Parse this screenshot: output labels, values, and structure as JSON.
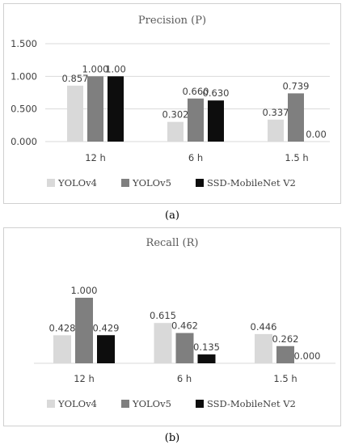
{
  "colors": [
    "#d9d9d9",
    "#7f7f7f",
    "#0d0d0d"
  ],
  "chart_data": [
    {
      "type": "bar",
      "title": "Precision (P)",
      "caption": "(a)",
      "categories": [
        "12 h",
        "6 h",
        "1.5 h"
      ],
      "series": [
        {
          "name": "YOLOv4",
          "values": [
            0.857,
            0.302,
            0.337
          ],
          "labels": [
            "0.857",
            "0.302",
            "0.337"
          ]
        },
        {
          "name": "YOLOv5",
          "values": [
            1.0,
            0.66,
            0.739
          ],
          "labels": [
            "1.000",
            "0.660",
            "0.739"
          ]
        },
        {
          "name": "SSD-MobileNet V2",
          "values": [
            1.0,
            0.63,
            0.0
          ],
          "labels": [
            "1.00",
            "0.630",
            "0.00"
          ]
        }
      ],
      "ylim": [
        0,
        1.5
      ],
      "yticks": [
        "0.000",
        "0.500",
        "1.000",
        "1.500"
      ],
      "grid": true,
      "legend": "bottom"
    },
    {
      "type": "bar",
      "title": "Recall (R)",
      "caption": "(b)",
      "categories": [
        "12 h",
        "6 h",
        "1.5 h"
      ],
      "series": [
        {
          "name": "YOLOv4",
          "values": [
            0.428,
            0.615,
            0.446
          ],
          "labels": [
            "0.428",
            "0.615",
            "0.446"
          ]
        },
        {
          "name": "YOLOv5",
          "values": [
            1.0,
            0.462,
            0.262
          ],
          "labels": [
            "1.000",
            "0.462",
            "0.262"
          ]
        },
        {
          "name": "SSD-MobileNet V2",
          "values": [
            0.429,
            0.135,
            0.0
          ],
          "labels": [
            "0.429",
            "0.135",
            "0.000"
          ]
        }
      ],
      "ylim": [
        0,
        1.0
      ],
      "grid": false,
      "legend": "bottom"
    }
  ]
}
